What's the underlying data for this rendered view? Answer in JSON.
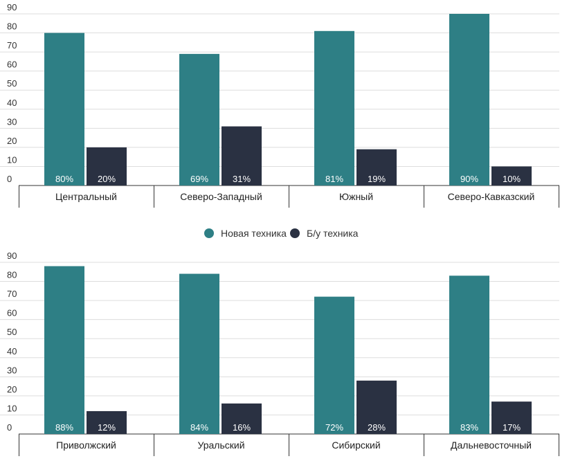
{
  "colors": {
    "new": "#2e7f85",
    "used": "#2a3142",
    "grid": "#dddddd",
    "axis": "#333333"
  },
  "legend": {
    "new_label": "Новая техника",
    "used_label": "Б/у техника"
  },
  "chart_data": [
    {
      "type": "bar",
      "categories": [
        "Центральный",
        "Северо-Западный",
        "Южный",
        "Северо-Кавказский"
      ],
      "series": [
        {
          "name": "Новая техника",
          "values": [
            80,
            69,
            81,
            90
          ],
          "labels": [
            "80%",
            "69%",
            "81%",
            "90%"
          ]
        },
        {
          "name": "Б/у техника",
          "values": [
            20,
            31,
            19,
            10
          ],
          "labels": [
            "20%",
            "31%",
            "19%",
            "10%"
          ]
        }
      ],
      "yticks": [
        0,
        10,
        20,
        30,
        40,
        50,
        60,
        70,
        80,
        90
      ],
      "ylim": [
        0,
        90
      ],
      "grid": true,
      "legend_position": "bottom-center"
    },
    {
      "type": "bar",
      "categories": [
        "Приволжский",
        "Уральский",
        "Сибирский",
        "Дальневосточный"
      ],
      "series": [
        {
          "name": "Новая техника",
          "values": [
            88,
            84,
            72,
            83
          ],
          "labels": [
            "88%",
            "84%",
            "72%",
            "83%"
          ]
        },
        {
          "name": "Б/у техника",
          "values": [
            12,
            16,
            28,
            17
          ],
          "labels": [
            "12%",
            "16%",
            "28%",
            "17%"
          ]
        }
      ],
      "yticks": [
        0,
        10,
        20,
        30,
        40,
        50,
        60,
        70,
        80,
        90
      ],
      "ylim": [
        0,
        90
      ],
      "grid": true
    }
  ]
}
